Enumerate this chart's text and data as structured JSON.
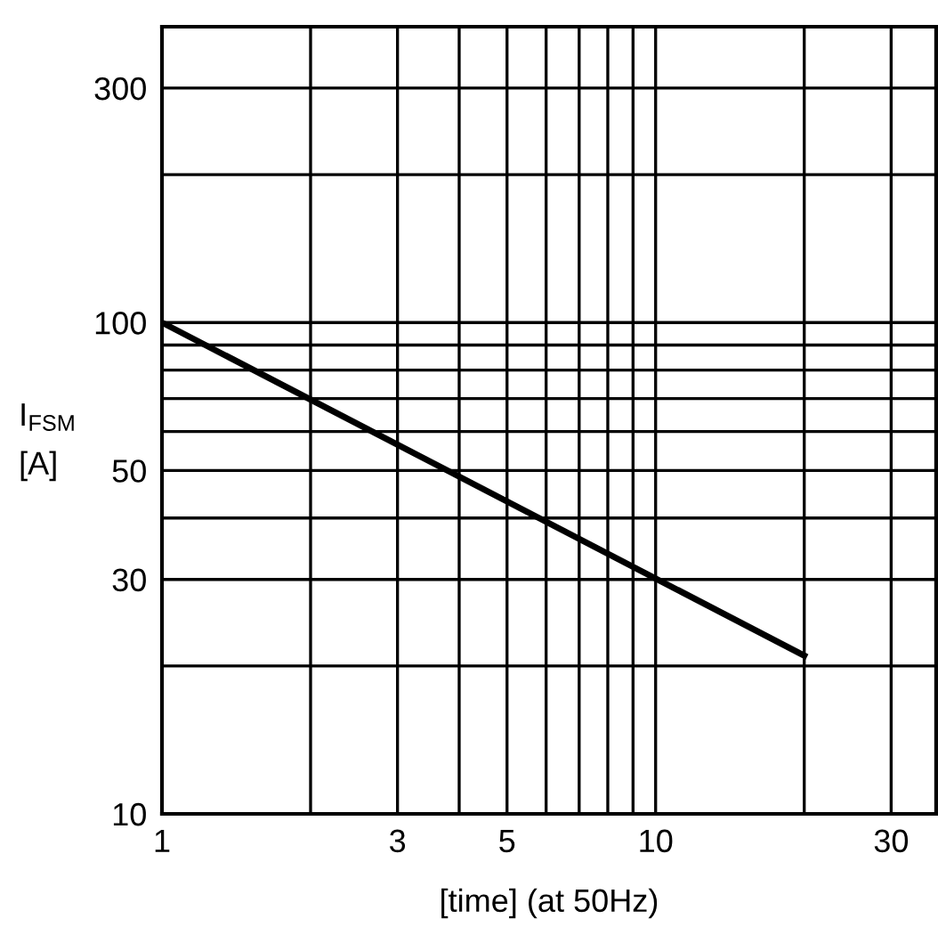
{
  "chart_data": {
    "type": "line",
    "xlabel": "[time] (at 50Hz)",
    "ylabel": "I$_{FSM}$\n[A]",
    "log": "xy",
    "grid": true,
    "line_style": "solid",
    "marker": "none",
    "series": [
      {
        "color": "#000000",
        "x": [
          1,
          20
        ],
        "values": [
          100,
          21
        ]
      }
    ],
    "xlim": [
      1,
      37
    ],
    "ylim": [
      10,
      400
    ],
    "xticks": [
      1,
      {
        "value": 2,
        "label": null
      },
      3,
      {
        "value": 4,
        "label": null
      },
      5,
      {
        "value": 6,
        "label": null
      },
      {
        "value": 7,
        "label": null
      },
      {
        "value": 8,
        "label": null
      },
      {
        "value": 9,
        "label": null
      },
      10,
      {
        "value": 20,
        "label": null
      },
      30
    ],
    "yticks": [
      10,
      {
        "value": 20,
        "label": null
      },
      30,
      {
        "value": 40,
        "label": null
      },
      50,
      {
        "value": 60,
        "label": null
      },
      {
        "value": 70,
        "label": null
      },
      {
        "value": 80,
        "label": null
      },
      {
        "value": 90,
        "label": null
      },
      100,
      {
        "value": 200,
        "label": null
      },
      300
    ]
  }
}
